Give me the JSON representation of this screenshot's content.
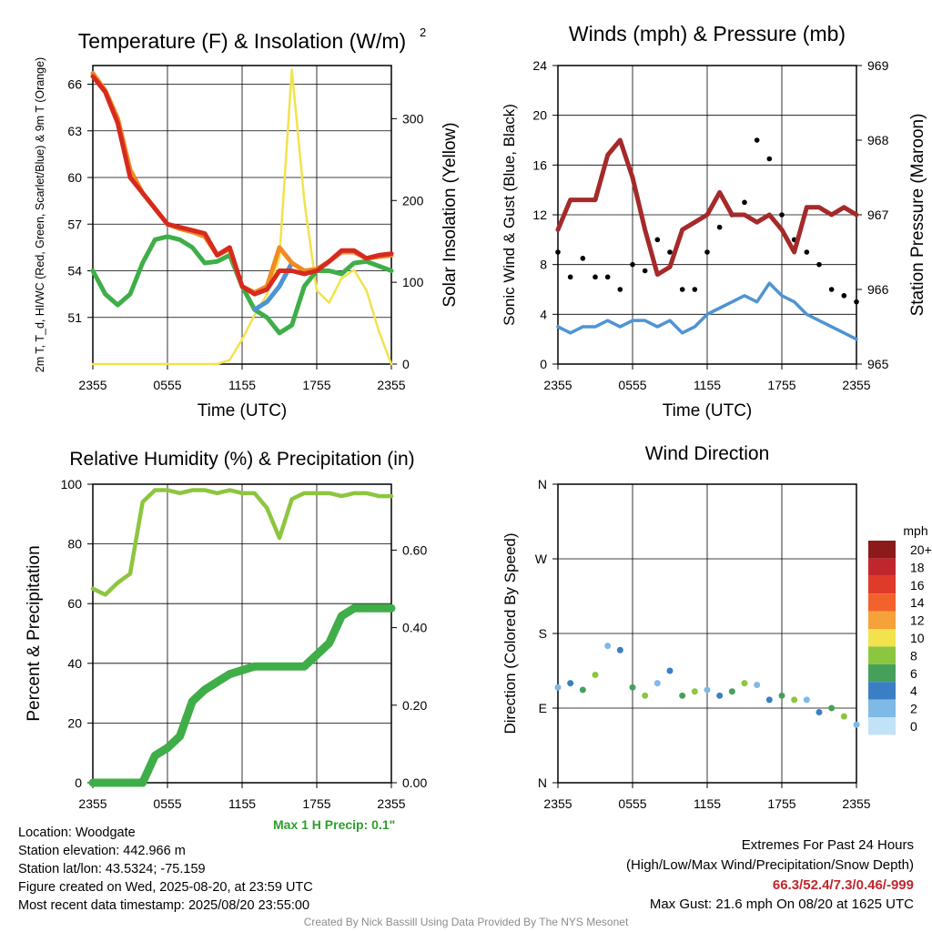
{
  "chart_data": [
    {
      "type": "line",
      "title": "Temperature (F) & Insolation (W/m²)",
      "xlabel": "Time (UTC)",
      "ylabel": "2m T, T_d, HI/WC (Red, Green, Scarlet/Blue) & 9m T (Orange)",
      "ylabel_right": "Solar Insolation (Yellow)",
      "x_ticks": [
        "2355",
        "0555",
        "1155",
        "1755",
        "2355"
      ],
      "y_ticks": [
        "51",
        "54",
        "57",
        "60",
        "63",
        "66"
      ],
      "y_ticks_right": [
        "0",
        "100",
        "200",
        "300"
      ],
      "ylim": [
        48,
        67.2
      ],
      "ylim_right": [
        0,
        365
      ],
      "x": [
        0,
        1,
        2,
        3,
        4,
        5,
        6,
        7,
        8,
        9,
        10,
        11,
        12,
        13,
        14,
        15,
        16,
        17,
        18,
        19,
        20,
        21,
        22,
        23,
        24
      ],
      "series": [
        {
          "name": "2m T",
          "color": "#d62a1f",
          "axis": "left",
          "values": [
            66.5,
            65.5,
            63.5,
            60,
            59,
            58,
            57,
            56.8,
            56.6,
            56.4,
            55,
            55.5,
            53,
            52.5,
            52.8,
            54,
            54,
            53.8,
            54,
            54.6,
            55.3,
            55.3,
            54.8,
            55,
            55.1
          ]
        },
        {
          "name": "9m T",
          "color": "#f08a24",
          "axis": "left",
          "values": [
            66.7,
            65.6,
            63.8,
            60.5,
            59,
            58,
            57,
            56.7,
            56.5,
            56.2,
            55,
            55.4,
            53,
            52.6,
            53,
            55.5,
            54.5,
            54,
            54.1,
            54.6,
            55.2,
            55.2,
            54.8,
            54.9,
            55
          ]
        },
        {
          "name": "T_d",
          "color": "#3fae49",
          "axis": "left",
          "values": [
            54,
            52.5,
            51.8,
            52.5,
            54.5,
            56,
            56.2,
            56,
            55.5,
            54.5,
            54.6,
            55,
            53,
            51.5,
            51,
            50,
            50.5,
            53,
            54,
            54,
            53.8,
            54.5,
            54.6,
            54.3,
            54
          ]
        },
        {
          "name": "HI/WC",
          "color": "#4e94d4",
          "axis": "left",
          "values": [
            null,
            null,
            null,
            null,
            null,
            null,
            null,
            null,
            null,
            null,
            null,
            null,
            null,
            51.5,
            52,
            53,
            54.5,
            null,
            null,
            null,
            null,
            null,
            null,
            null,
            null
          ]
        },
        {
          "name": "Solar Insolation",
          "color": "#f2e24c",
          "axis": "right",
          "values": [
            0,
            0,
            0,
            0,
            0,
            0,
            0,
            0,
            0,
            0,
            0,
            5,
            30,
            60,
            85,
            130,
            360,
            200,
            90,
            75,
            105,
            115,
            90,
            40,
            0
          ]
        }
      ]
    },
    {
      "type": "line",
      "title": "Winds (mph) & Pressure (mb)",
      "xlabel": "Time (UTC)",
      "ylabel": "Sonic Wind & Gust (Blue, Black)",
      "ylabel_right": "Station Pressure (Maroon)",
      "x_ticks": [
        "2355",
        "0555",
        "1155",
        "1755",
        "2355"
      ],
      "y_ticks": [
        "0",
        "4",
        "8",
        "12",
        "16",
        "20",
        "24"
      ],
      "y_ticks_right": [
        "965",
        "966",
        "967",
        "968",
        "969"
      ],
      "ylim": [
        0,
        24
      ],
      "ylim_right": [
        965,
        969
      ],
      "x": [
        0,
        1,
        2,
        3,
        4,
        5,
        6,
        7,
        8,
        9,
        10,
        11,
        12,
        13,
        14,
        15,
        16,
        17,
        18,
        19,
        20,
        21,
        22,
        23,
        24
      ],
      "series": [
        {
          "name": "Sonic Wind",
          "color": "#4e94d4",
          "axis": "left",
          "values": [
            3,
            2.5,
            3,
            3,
            3.5,
            3,
            3.5,
            3.5,
            3,
            3.5,
            2.5,
            3,
            4,
            4.5,
            5,
            5.5,
            5,
            6.5,
            5.5,
            5,
            4,
            3.5,
            3,
            2.5,
            2
          ]
        },
        {
          "name": "Gust",
          "color": "#000000",
          "axis": "left",
          "values": [
            9,
            7,
            8.5,
            7,
            7,
            6,
            8,
            7.5,
            10,
            9,
            6,
            6,
            9,
            11,
            12,
            13,
            18,
            16.5,
            12,
            10,
            9,
            8,
            6,
            5.5,
            5
          ]
        },
        {
          "name": "Station Pressure",
          "color": "#a52a2a",
          "axis": "right",
          "values": [
            966.8,
            967.2,
            967.2,
            967.2,
            967.8,
            968.0,
            967.5,
            966.8,
            966.2,
            966.3,
            966.8,
            966.9,
            967.0,
            967.3,
            967.0,
            967.0,
            966.9,
            967.0,
            966.8,
            966.5,
            967.1,
            967.1,
            967.0,
            967.1,
            967.0
          ]
        }
      ]
    },
    {
      "type": "line",
      "title": "Relative Humidity (%) & Precipitation (in)",
      "xlabel": "",
      "ylabel": "Percent & Precipitation",
      "x_ticks": [
        "2355",
        "0555",
        "1155",
        "1755",
        "2355"
      ],
      "y_ticks": [
        "0",
        "20",
        "40",
        "60",
        "80",
        "100"
      ],
      "y_ticks_right": [
        "0.00",
        "0.20",
        "0.40",
        "0.60"
      ],
      "ylim": [
        0,
        100
      ],
      "ylim_right": [
        0,
        0.77
      ],
      "x": [
        0,
        1,
        2,
        3,
        4,
        5,
        6,
        7,
        8,
        9,
        10,
        11,
        12,
        13,
        14,
        15,
        16,
        17,
        18,
        19,
        20,
        21,
        22,
        23,
        24
      ],
      "series": [
        {
          "name": "Relative Humidity",
          "color": "#8cc63f",
          "axis": "left",
          "values": [
            65,
            63,
            67,
            70,
            94,
            98,
            98,
            97,
            98,
            98,
            97,
            98,
            97,
            97,
            92,
            82,
            95,
            97,
            97,
            97,
            96,
            97,
            97,
            96,
            96
          ]
        },
        {
          "name": "Precipitation",
          "color": "#3fae49",
          "axis": "right",
          "values": [
            0,
            0,
            0,
            0,
            0,
            0.07,
            0.09,
            0.12,
            0.21,
            0.24,
            0.26,
            0.28,
            0.29,
            0.3,
            0.3,
            0.3,
            0.3,
            0.3,
            0.33,
            0.36,
            0.43,
            0.45,
            0.45,
            0.45,
            0.45
          ]
        }
      ],
      "annotation": "Max 1 H Precip: 0.1\""
    },
    {
      "type": "scatter",
      "title": "Wind Direction",
      "xlabel": "",
      "ylabel": "Direction (Colored By Speed)",
      "x_ticks": [
        "2355",
        "0555",
        "1155",
        "1755",
        "2355"
      ],
      "y_ticks": [
        "N",
        "E",
        "S",
        "W",
        "N"
      ],
      "ylim": [
        0,
        360
      ],
      "legend": {
        "title": "mph",
        "labels": [
          "20+",
          "18",
          "16",
          "14",
          "12",
          "10",
          "8",
          "6",
          "4",
          "2",
          "0"
        ],
        "colors": [
          "#8b1a1a",
          "#c0272d",
          "#e03a2a",
          "#f2622c",
          "#f7a13a",
          "#f2e24c",
          "#8cc63f",
          "#46a05a",
          "#3a7fc4",
          "#7fb9e6",
          "#c2e2f7"
        ]
      },
      "x": [
        0,
        1,
        2,
        3,
        4,
        5,
        6,
        7,
        8,
        9,
        10,
        11,
        12,
        13,
        14,
        15,
        16,
        17,
        18,
        19,
        20,
        21,
        22,
        23,
        24
      ],
      "series": [
        {
          "name": "Direction",
          "values": [
            115,
            120,
            112,
            130,
            165,
            160,
            115,
            105,
            120,
            135,
            105,
            110,
            112,
            105,
            110,
            120,
            118,
            100,
            105,
            100,
            100,
            85,
            90,
            80,
            70
          ]
        }
      ]
    }
  ],
  "footer": {
    "location": "Location: Woodgate",
    "elevation": "Station elevation: 442.966 m",
    "latlon": "Station lat/lon: 43.5324; -75.159",
    "created": "Figure created on Wed, 2025-08-20, at 23:59 UTC",
    "recent": "Most recent data timestamp: 2025/08/20 23:55:00",
    "extremes_title": "Extremes For Past 24 Hours",
    "extremes_sub": "(High/Low/Max Wind/Precipitation/Snow Depth)",
    "extremes_values": "66.3/52.4/7.3/0.46/-999",
    "max_gust": "Max Gust: 21.6 mph On 08/20 at 1625 UTC",
    "credit": "Created By Nick Bassill Using Data Provided By The NYS Mesonet"
  }
}
